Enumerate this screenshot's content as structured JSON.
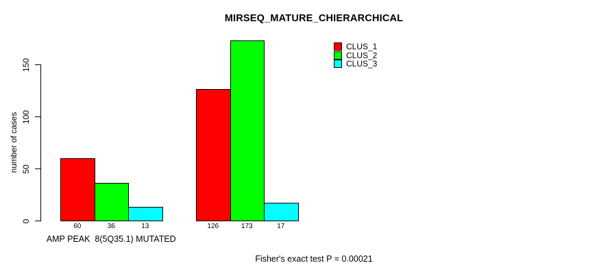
{
  "chart_data": {
    "type": "bar",
    "title": "MIRSEQ_MATURE_CHIERARCHICAL",
    "ylabel": "number of cases",
    "xlabel": "",
    "yticks": [
      0,
      50,
      100,
      150
    ],
    "ylim": [
      0,
      175
    ],
    "grid": false,
    "legend_position": "top-right",
    "categories": [
      "AMP PEAK  8(5Q35.1) MUTATED",
      ""
    ],
    "series": [
      {
        "name": "CLUS_1",
        "color": "#ff0000",
        "values": [
          60,
          126
        ]
      },
      {
        "name": "CLUS_2",
        "color": "#00ff00",
        "values": [
          36,
          173
        ]
      },
      {
        "name": "CLUS_3",
        "color": "#00ffff",
        "values": [
          13,
          17
        ]
      }
    ],
    "annotation": "Fisher's exact test P = 0.00021"
  }
}
